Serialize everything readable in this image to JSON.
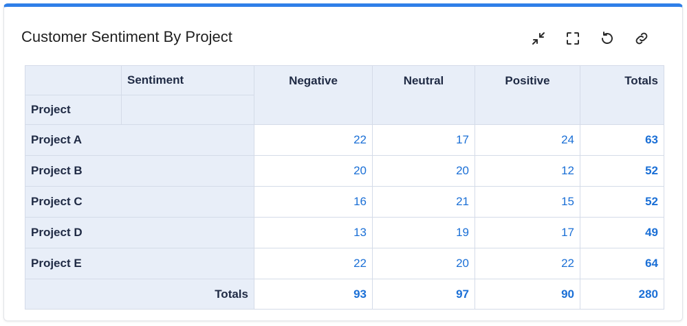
{
  "widget": {
    "title": "Customer Sentiment By Project",
    "toolbar": {
      "icons": [
        "collapse-icon",
        "fullscreen-icon",
        "refresh-icon",
        "link-icon"
      ]
    }
  },
  "table": {
    "col_dimension_label": "Sentiment",
    "row_dimension_label": "Project",
    "columns": [
      "Negative",
      "Neutral",
      "Positive",
      "Totals"
    ],
    "rows": [
      {
        "label": "Project A",
        "values": [
          "22",
          "17",
          "24"
        ],
        "total": "63"
      },
      {
        "label": "Project B",
        "values": [
          "20",
          "20",
          "12"
        ],
        "total": "52"
      },
      {
        "label": "Project C",
        "values": [
          "16",
          "21",
          "15"
        ],
        "total": "52"
      },
      {
        "label": "Project D",
        "values": [
          "13",
          "19",
          "17"
        ],
        "total": "49"
      },
      {
        "label": "Project E",
        "values": [
          "22",
          "20",
          "22"
        ],
        "total": "64"
      }
    ],
    "totals_row": {
      "label": "Totals",
      "values": [
        "93",
        "97",
        "90"
      ],
      "total": "280"
    }
  },
  "colors": {
    "accent": "#2f7fe8",
    "value": "#1a6fd6",
    "header_bg": "#e8eef8"
  }
}
